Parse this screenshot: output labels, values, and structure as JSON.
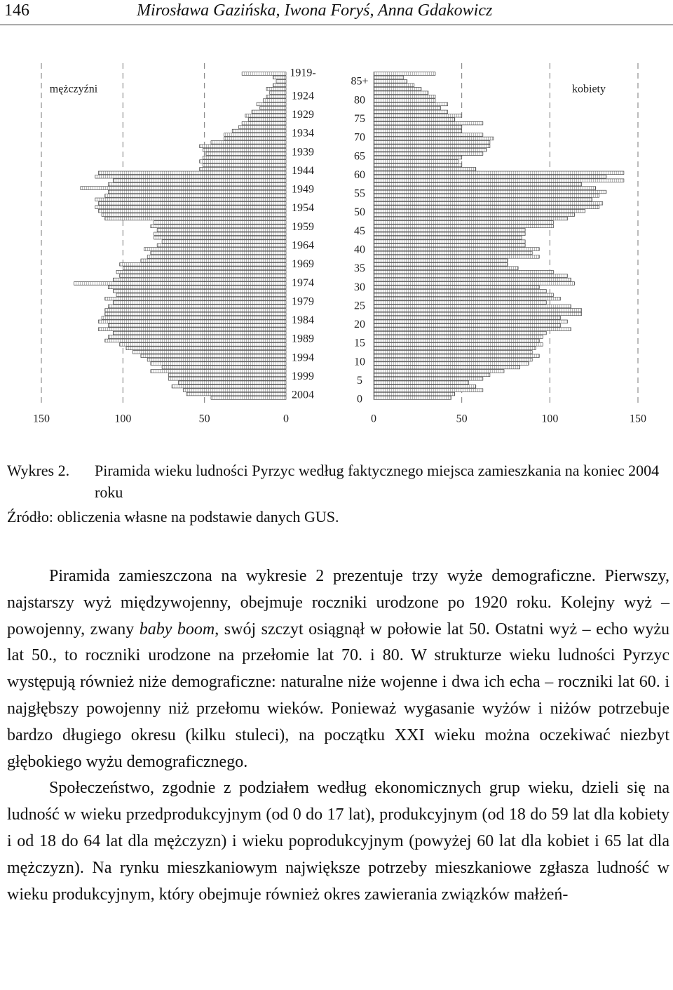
{
  "header": {
    "page_number": "146",
    "authors": "Mirosława Gazińska, Iwona Foryś, Anna Gdakowicz"
  },
  "chart_data": {
    "type": "population_pyramid",
    "categories": [
      "0",
      null,
      null,
      null,
      null,
      "5",
      null,
      null,
      null,
      null,
      "10",
      null,
      null,
      null,
      null,
      "15",
      null,
      null,
      null,
      null,
      "20",
      null,
      null,
      null,
      null,
      "25",
      null,
      null,
      null,
      null,
      "30",
      null,
      null,
      null,
      null,
      "35",
      null,
      null,
      null,
      null,
      "40",
      null,
      null,
      null,
      null,
      "45",
      null,
      null,
      null,
      null,
      "50",
      null,
      null,
      null,
      null,
      "55",
      null,
      null,
      null,
      null,
      "60",
      null,
      null,
      null,
      null,
      "65",
      null,
      null,
      null,
      null,
      "70",
      null,
      null,
      null,
      null,
      "75",
      null,
      null,
      null,
      null,
      "80",
      null,
      null,
      null,
      null,
      "85+"
    ],
    "birth_years": [
      "2004",
      null,
      null,
      null,
      null,
      "1999",
      null,
      null,
      null,
      null,
      "1994",
      null,
      null,
      null,
      null,
      "1989",
      null,
      null,
      null,
      null,
      "1984",
      null,
      null,
      null,
      null,
      "1979",
      null,
      null,
      null,
      null,
      "1974",
      null,
      null,
      null,
      null,
      "1969",
      null,
      null,
      null,
      null,
      "1964",
      null,
      null,
      null,
      null,
      "1959",
      null,
      null,
      null,
      null,
      "1954",
      null,
      null,
      null,
      null,
      "1949",
      null,
      null,
      null,
      null,
      "1944",
      null,
      null,
      null,
      null,
      "1939",
      null,
      null,
      null,
      null,
      "1934",
      null,
      null,
      null,
      null,
      "1929",
      null,
      null,
      null,
      null,
      "1924",
      null,
      null,
      null,
      null,
      "1919-"
    ],
    "series": [
      {
        "name": "mężczyźni",
        "color": "#777777",
        "side": "left",
        "values": [
          46,
          61,
          63,
          70,
          66,
          72,
          72,
          83,
          76,
          83,
          85,
          89,
          94,
          98,
          102,
          111,
          109,
          106,
          115,
          109,
          115,
          113,
          111,
          111,
          109,
          106,
          111,
          104,
          106,
          109,
          130,
          106,
          102,
          104,
          100,
          102,
          89,
          85,
          83,
          87,
          79,
          76,
          81,
          81,
          79,
          83,
          81,
          111,
          113,
          115,
          117,
          115,
          117,
          111,
          109,
          126,
          109,
          106,
          117,
          115,
          53,
          51,
          53,
          51,
          49,
          51,
          53,
          46,
          38,
          38,
          33,
          29,
          27,
          23,
          25,
          21,
          16,
          18,
          14,
          12,
          10,
          12,
          8,
          6,
          8,
          27
        ]
      },
      {
        "name": "kobiety",
        "color": "#777777",
        "side": "right",
        "values": [
          44,
          46,
          62,
          58,
          54,
          62,
          66,
          74,
          83,
          88,
          90,
          94,
          90,
          92,
          96,
          94,
          96,
          98,
          112,
          106,
          110,
          106,
          118,
          118,
          112,
          98,
          106,
          102,
          98,
          94,
          114,
          112,
          110,
          102,
          82,
          76,
          76,
          94,
          90,
          94,
          86,
          86,
          84,
          86,
          86,
          102,
          102,
          110,
          114,
          120,
          128,
          130,
          124,
          128,
          132,
          126,
          118,
          142,
          132,
          142,
          58,
          50,
          48,
          50,
          62,
          64,
          66,
          66,
          68,
          62,
          50,
          50,
          62,
          46,
          50,
          42,
          38,
          42,
          35,
          35,
          31,
          27,
          23,
          19,
          17,
          35
        ]
      }
    ],
    "xlim": [
      0,
      150
    ],
    "xticks": [
      0,
      50,
      100,
      150
    ],
    "grid": true
  },
  "caption": {
    "label": "Wykres 2.",
    "text": "Piramida wieku ludności Pyrzyc według faktycznego miejsca zamieszkania na koniec 2004 roku",
    "source": "Źródło: obliczenia własne na podstawie danych GUS."
  },
  "paragraphs": [
    [
      "Piramida zamieszczona na wykresie 2 prezentuje trzy wyże demograficzne. Pierwszy, najstarszy wyż międzywojenny, obejmuje roczniki urodzone po 1920 roku. Kolejny wyż – powojenny, zwany ",
      "baby boom",
      ", swój szczyt osiągnął w połowie lat 50. Ostatni wyż – echo wyżu lat 50., to roczniki urodzone na przełomie lat 70. i 80. W strukturze wieku ludności Pyrzyc występują również niże demograficzne: naturalne niże wojenne i dwa ich echa – roczniki lat 60. i najgłębszy powojenny niż przełomu wieków. Ponieważ wygasanie wyżów i niżów potrzebuje bardzo długiego okresu (kilku stuleci), na początku XXI wieku można oczekiwać niezbyt głębokiego wyżu demograficznego."
    ],
    [
      "Społeczeństwo, zgodnie z podziałem według ekonomicznych grup wieku, dzieli się na ludność w wieku przedprodukcyjnym (od 0 do 17 lat), produkcyjnym (od 18 do 59 lat dla kobiety i od 18 do 64 lat dla mężczyzn) i wieku poprodukcyjnym (powyżej 60 lat dla kobiet i 65 lat dla mężczyzn). Na rynku mieszkaniowym największe potrzeby mieszkaniowe zgłasza ludność w wieku produkcyjnym, który obejmuje również okres zawierania związków małżeń-"
    ]
  ]
}
